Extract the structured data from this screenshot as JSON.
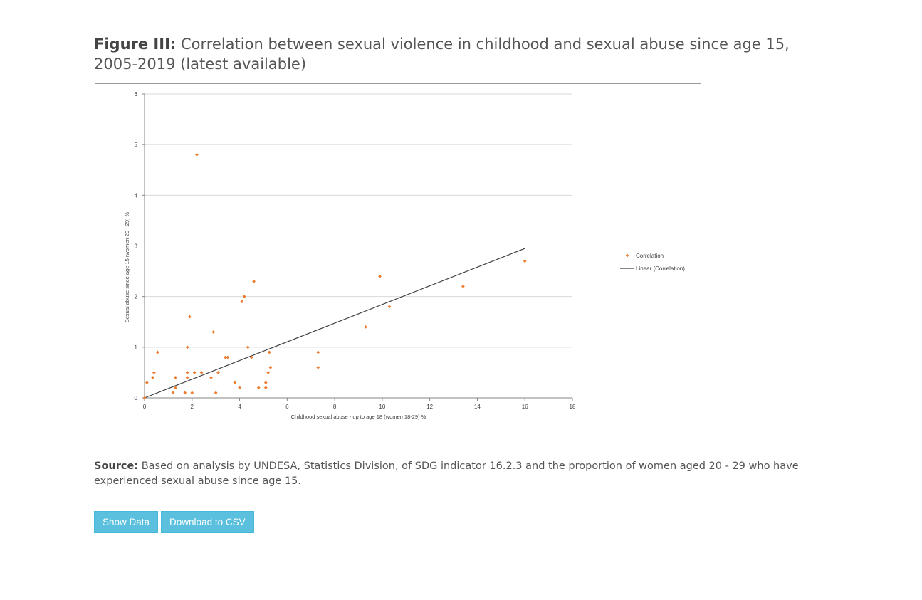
{
  "figure": {
    "label": "Figure III:",
    "title": "Correlation between sexual violence in childhood and sexual abuse since age 15, 2005-2019 (latest available)"
  },
  "source": {
    "label": "Source:",
    "text": "Based on analysis by UNDESA, Statistics Division, of SDG indicator 16.2.3 and the proportion of women aged 20 - 29 who have experienced sexual abuse since age 15."
  },
  "buttons": {
    "show_data": "Show Data",
    "download_csv": "Download to CSV"
  },
  "chart_data": {
    "type": "scatter",
    "xlabel": "Childhood sexual abuse - up to age 18 (women 18-29) %",
    "ylabel": "Sexual abuse since age 15 (women 20 - 29) %",
    "xlim": [
      0,
      18
    ],
    "ylim": [
      0,
      6
    ],
    "xticks": [
      0,
      2,
      4,
      6,
      8,
      10,
      12,
      14,
      16,
      18
    ],
    "yticks": [
      0,
      1,
      2,
      3,
      4,
      5,
      6
    ],
    "grid": "horizontal",
    "legend_position": "right",
    "legend": [
      "Correlation",
      "Linear (Correlation)"
    ],
    "point_color": "#ed7d31",
    "trend_color": "#404040",
    "series": [
      {
        "name": "Correlation",
        "points": [
          [
            0.0,
            0.0
          ],
          [
            0.1,
            0.3
          ],
          [
            0.35,
            0.4
          ],
          [
            0.4,
            0.5
          ],
          [
            0.55,
            0.9
          ],
          [
            1.2,
            0.1
          ],
          [
            1.3,
            0.4
          ],
          [
            1.3,
            0.2
          ],
          [
            1.7,
            0.1
          ],
          [
            1.8,
            0.4
          ],
          [
            1.8,
            0.5
          ],
          [
            1.8,
            1.0
          ],
          [
            1.9,
            1.6
          ],
          [
            2.0,
            0.1
          ],
          [
            2.1,
            0.5
          ],
          [
            2.2,
            4.8
          ],
          [
            2.4,
            0.5
          ],
          [
            2.8,
            0.4
          ],
          [
            2.9,
            1.3
          ],
          [
            3.0,
            0.1
          ],
          [
            3.1,
            0.5
          ],
          [
            3.4,
            0.8
          ],
          [
            3.5,
            0.8
          ],
          [
            3.8,
            0.3
          ],
          [
            4.0,
            0.2
          ],
          [
            4.1,
            1.9
          ],
          [
            4.2,
            2.0
          ],
          [
            4.35,
            1.0
          ],
          [
            4.5,
            0.8
          ],
          [
            4.6,
            2.3
          ],
          [
            4.8,
            0.2
          ],
          [
            5.1,
            0.2
          ],
          [
            5.1,
            0.3
          ],
          [
            5.2,
            0.5
          ],
          [
            5.25,
            0.9
          ],
          [
            5.3,
            0.6
          ],
          [
            7.3,
            0.9
          ],
          [
            7.3,
            0.6
          ],
          [
            9.3,
            1.4
          ],
          [
            9.9,
            2.4
          ],
          [
            10.3,
            1.8
          ],
          [
            13.4,
            2.2
          ],
          [
            16.0,
            2.7
          ]
        ]
      },
      {
        "name": "Linear (Correlation)",
        "line": [
          [
            0.0,
            0.0
          ],
          [
            16.0,
            2.95
          ]
        ]
      }
    ]
  }
}
